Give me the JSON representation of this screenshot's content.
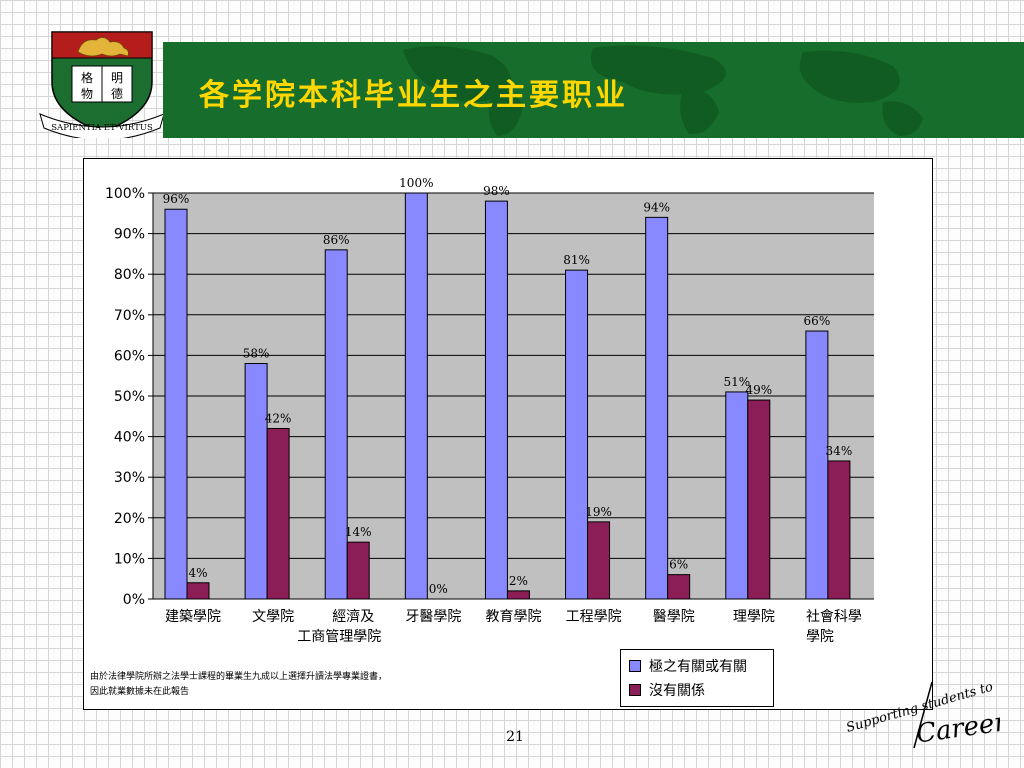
{
  "slide": {
    "title": "各学院本科毕业生之主要职业",
    "page_number": "21",
    "footnote": [
      "由於法律學院所辦之法學士課程的畢業生九成以上選擇升讀法學專業證書，",
      "因此就業數據未在此報告"
    ]
  },
  "crest": {
    "motto": "SAPIENTIA·ET·VIRTUS",
    "book_chars": [
      "格",
      "明",
      "物",
      "德"
    ],
    "colors": {
      "shield_red": "#b51c1c",
      "shield_green": "#1b6e30",
      "gold": "#e2b53a"
    }
  },
  "signature": {
    "text_top": "Supporting students to",
    "text_bottom": "Careers"
  },
  "colors": {
    "banner_green": "#176d2b",
    "title_yellow": "#ffd700",
    "plot_bg": "#c0c0c0",
    "series_1": "#8888ff",
    "series_2": "#8b1d57"
  },
  "chart_data": {
    "type": "bar",
    "categories": [
      [
        "建築學院"
      ],
      [
        "文學院"
      ],
      [
        "經濟及",
        "工商管理學院"
      ],
      [
        "牙醫學院"
      ],
      [
        "教育學院"
      ],
      [
        "工程學院"
      ],
      [
        "醫學院"
      ],
      [
        "理學院"
      ],
      [
        "社會科學",
        "學院"
      ]
    ],
    "series": [
      {
        "name": "極之有關或有關",
        "values": [
          96,
          58,
          86,
          100,
          98,
          81,
          94,
          51,
          66
        ]
      },
      {
        "name": "沒有關係",
        "values": [
          4,
          42,
          14,
          0,
          2,
          19,
          6,
          49,
          34
        ]
      }
    ],
    "ylim": [
      0,
      100
    ],
    "yticks": [
      0,
      10,
      20,
      30,
      40,
      50,
      60,
      70,
      80,
      90,
      100
    ],
    "ytick_suffix": "%",
    "data_label_suffix": "%",
    "grid": true,
    "legend": "bottom-right"
  }
}
